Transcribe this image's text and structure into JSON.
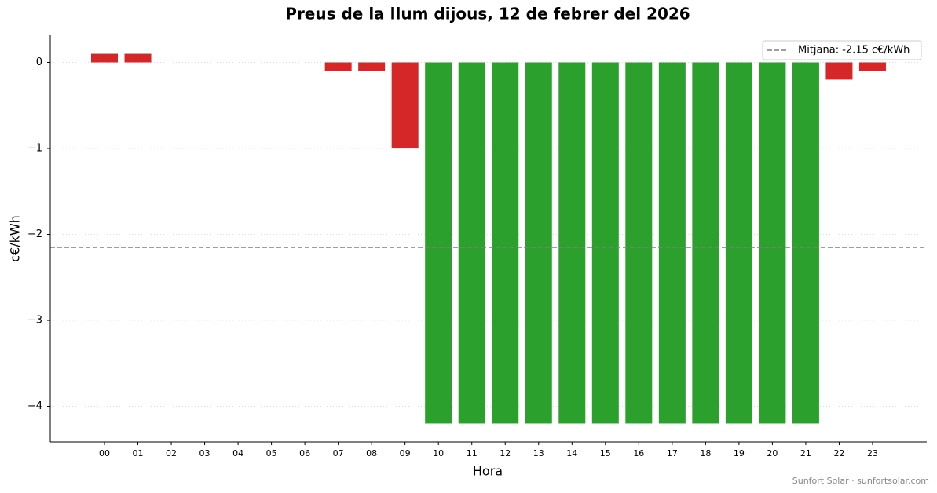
{
  "chart_data": {
    "type": "bar",
    "title": "Preus de la llum dijous, 12 de febrer del 2026",
    "x_label": "Hora",
    "y_label": "c€/kWh",
    "categories": [
      "00",
      "01",
      "02",
      "03",
      "04",
      "05",
      "06",
      "07",
      "08",
      "09",
      "10",
      "11",
      "12",
      "13",
      "14",
      "15",
      "16",
      "17",
      "18",
      "19",
      "20",
      "21",
      "22",
      "23"
    ],
    "values": [
      0.1,
      0.1,
      0,
      0,
      0,
      0,
      0,
      -0.1,
      -0.1,
      -1,
      -4.2,
      -4.2,
      -4.2,
      -4.2,
      -4.2,
      -4.2,
      -4.2,
      -4.2,
      -4.2,
      -4.2,
      -4.2,
      -4.2,
      -0.2,
      -0.1
    ],
    "colors": [
      "#d62728",
      "#d62728",
      "#d62728",
      "#d62728",
      "#d62728",
      "#d62728",
      "#d62728",
      "#d62728",
      "#d62728",
      "#d62728",
      "#2ca02c",
      "#2ca02c",
      "#2ca02c",
      "#2ca02c",
      "#2ca02c",
      "#2ca02c",
      "#2ca02c",
      "#2ca02c",
      "#2ca02c",
      "#2ca02c",
      "#2ca02c",
      "#2ca02c",
      "#d62728",
      "#d62728"
    ],
    "mean_line": {
      "value": -2.15,
      "label": "Mitjana: -2.15 c€/kWh",
      "color": "#7f7f7f"
    },
    "ylim": [
      -4.415,
      0.315
    ],
    "yticks": [
      0,
      {
        "value": -1,
        "label": "−1"
      },
      {
        "value": -2,
        "label": "−2"
      },
      {
        "value": -3,
        "label": "−3"
      },
      {
        "value": -4,
        "label": "−4"
      }
    ],
    "grid": true,
    "legend": "upper right",
    "footer": "Sunfort Solar · sunfortsolar.com"
  }
}
